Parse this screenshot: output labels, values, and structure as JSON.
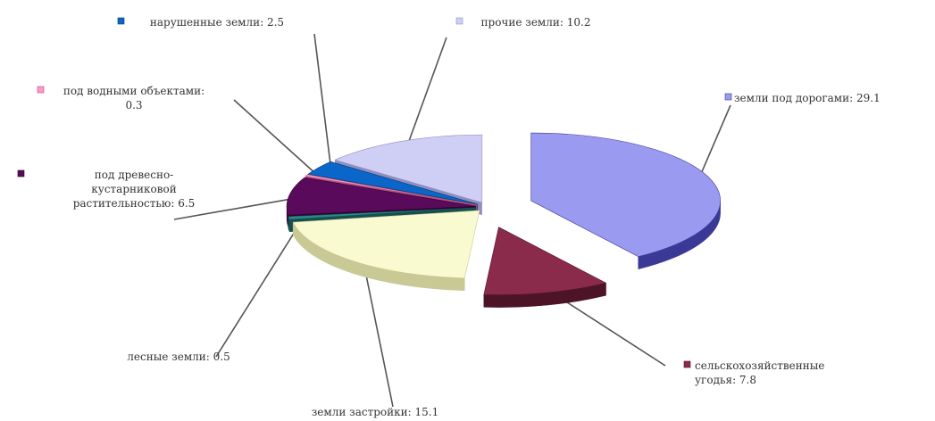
{
  "chart_data": {
    "type": "pie",
    "title": "",
    "three_d": true,
    "exploded": true,
    "legend": "labels beside slices",
    "slices": [
      {
        "label": "земли под дорогами",
        "value": 29.1,
        "label_text": "земли под дорогами: 29.1",
        "color": "#9a9af0",
        "side": "#3a3a96"
      },
      {
        "label": "сельскохозяйственные угодья",
        "value": 7.8,
        "label_text": "сельскохозяйственные угодья: 7.8",
        "color": "#8b2b4c",
        "side": "#4d1428"
      },
      {
        "label": "земли застройки",
        "value": 15.1,
        "label_text": "земли застройки: 15.1",
        "color": "#fafad0",
        "side": "#c9c996"
      },
      {
        "label": "лесные земли",
        "value": 0.5,
        "label_text": "лесные земли: 0.5",
        "color": "#2a8a8a",
        "side": "#145050"
      },
      {
        "label": "под древесно-кустарниковой растительностью",
        "value": 6.5,
        "label_text": "под древесно-кустарниковой растительностью: 6.5",
        "color": "#5a0a5a",
        "side": "#300330"
      },
      {
        "label": "под водными объектами",
        "value": 0.3,
        "label_text": "под водными объектами: 0.3",
        "color": "#ff99cc",
        "side": "#b3527f"
      },
      {
        "label": "нарушенные земли",
        "value": 2.5,
        "label_text": "нарушенные земли: 2.5",
        "color": "#0a66c8",
        "side": "#053a75"
      },
      {
        "label": "прочие земли",
        "value": 10.2,
        "label_text": "прочие земли: 10.2",
        "color": "#cfcff5",
        "side": "#8e8ec0"
      }
    ]
  }
}
